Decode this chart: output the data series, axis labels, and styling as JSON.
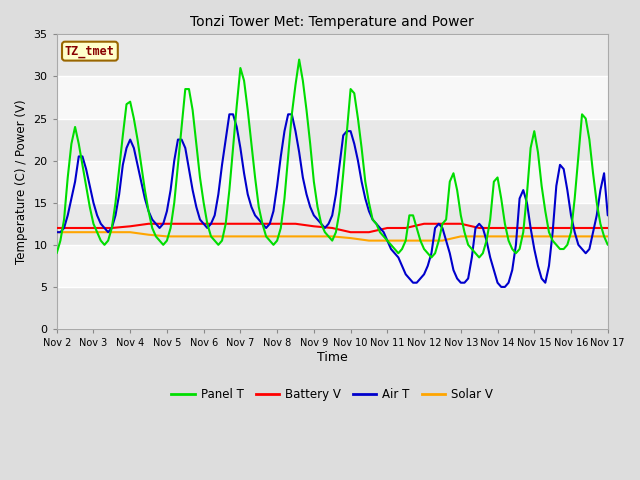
{
  "title": "Tonzi Tower Met: Temperature and Power",
  "xlabel": "Time",
  "ylabel": "Temperature (C) / Power (V)",
  "ylim": [
    0,
    35
  ],
  "yticks": [
    0,
    5,
    10,
    15,
    20,
    25,
    30,
    35
  ],
  "fig_bg": "#f0f0f0",
  "plot_bg": "#f0f0f0",
  "annotation_text": "TZ_tmet",
  "annotation_bg": "#ffffcc",
  "annotation_border": "#996600",
  "annotation_text_color": "#880000",
  "legend_entries": [
    "Panel T",
    "Battery V",
    "Air T",
    "Solar V"
  ],
  "legend_colors": [
    "#00ee00",
    "#ff0000",
    "#0000dd",
    "#ffa500"
  ],
  "x_tick_labels": [
    "Nov 2",
    "Nov 3",
    "Nov 4",
    "Nov 5",
    "Nov 6",
    "Nov 7",
    "Nov 8",
    "Nov 9",
    "Nov 10",
    "Nov 11",
    "Nov 12",
    "Nov 13",
    "Nov 14",
    "Nov 15",
    "Nov 16",
    "Nov 17"
  ],
  "panel_t_x": [
    1.0,
    1.1,
    1.2,
    1.3,
    1.4,
    1.5,
    1.6,
    1.7,
    1.8,
    1.9,
    2.0,
    2.1,
    2.2,
    2.3,
    2.4,
    2.5,
    2.6,
    2.7,
    2.8,
    2.9,
    3.0,
    3.1,
    3.2,
    3.3,
    3.4,
    3.5,
    3.6,
    3.7,
    3.8,
    3.9,
    4.0,
    4.1,
    4.2,
    4.3,
    4.4,
    4.5,
    4.6,
    4.7,
    4.8,
    4.9,
    5.0,
    5.1,
    5.2,
    5.3,
    5.4,
    5.5,
    5.6,
    5.7,
    5.8,
    5.9,
    6.0,
    6.1,
    6.2,
    6.3,
    6.4,
    6.5,
    6.6,
    6.7,
    6.8,
    6.9,
    7.0,
    7.1,
    7.2,
    7.3,
    7.4,
    7.5,
    7.6,
    7.7,
    7.8,
    7.9,
    8.0,
    8.1,
    8.2,
    8.3,
    8.4,
    8.5,
    8.6,
    8.7,
    8.8,
    8.9,
    9.0,
    9.1,
    9.2,
    9.3,
    9.4,
    9.5,
    9.6,
    9.7,
    9.8,
    9.9,
    10.0,
    10.1,
    10.2,
    10.3,
    10.4,
    10.5,
    10.6,
    10.7,
    10.8,
    10.9,
    11.0,
    11.1,
    11.2,
    11.3,
    11.4,
    11.5,
    11.6,
    11.7,
    11.8,
    11.9,
    12.0,
    12.1,
    12.2,
    12.3,
    12.4,
    12.5,
    12.6,
    12.7,
    12.8,
    12.9,
    13.0,
    13.1,
    13.2,
    13.3,
    13.4,
    13.5,
    13.6,
    13.7,
    13.8,
    13.9,
    14.0,
    14.1,
    14.2,
    14.3,
    14.4,
    14.5,
    14.6,
    14.7,
    14.8,
    14.9,
    15.0,
    15.1,
    15.2,
    15.3,
    15.4,
    15.5,
    15.6,
    15.7,
    15.8,
    15.9,
    16.0
  ],
  "panel_t_y": [
    9.0,
    10.5,
    13.0,
    18.0,
    22.0,
    24.0,
    22.0,
    19.5,
    17.0,
    14.5,
    12.5,
    11.5,
    10.5,
    10.0,
    10.5,
    12.0,
    15.0,
    19.0,
    23.0,
    26.7,
    27.0,
    25.0,
    22.5,
    19.5,
    16.5,
    14.0,
    12.0,
    11.0,
    10.5,
    10.0,
    10.5,
    12.0,
    15.0,
    19.5,
    24.0,
    28.5,
    28.5,
    26.0,
    22.0,
    18.0,
    15.0,
    12.5,
    11.0,
    10.5,
    10.0,
    10.5,
    12.5,
    16.5,
    21.5,
    26.5,
    31.0,
    29.5,
    26.0,
    22.0,
    18.0,
    14.5,
    12.5,
    11.0,
    10.5,
    10.0,
    10.5,
    12.0,
    15.5,
    20.5,
    25.5,
    29.0,
    32.0,
    29.5,
    26.0,
    22.0,
    17.5,
    14.5,
    12.5,
    11.5,
    11.0,
    10.5,
    11.5,
    14.0,
    18.5,
    23.5,
    28.5,
    28.0,
    25.0,
    21.5,
    17.5,
    15.0,
    13.0,
    12.5,
    11.5,
    11.0,
    10.5,
    10.0,
    9.5,
    9.0,
    9.5,
    10.5,
    13.5,
    13.5,
    12.0,
    10.5,
    9.5,
    9.0,
    8.5,
    9.0,
    10.5,
    12.5,
    13.0,
    17.5,
    18.5,
    16.5,
    13.5,
    11.5,
    10.0,
    9.5,
    9.0,
    8.5,
    9.0,
    10.5,
    13.0,
    17.5,
    18.0,
    15.5,
    12.5,
    10.5,
    9.5,
    9.0,
    9.5,
    11.5,
    16.0,
    21.5,
    23.5,
    21.0,
    17.0,
    14.0,
    11.5,
    10.5,
    10.0,
    9.5,
    9.5,
    10.0,
    11.5,
    15.5,
    20.5,
    25.5,
    25.0,
    22.5,
    18.5,
    15.0,
    12.5,
    11.0,
    10.0
  ],
  "air_t_x": [
    1.0,
    1.1,
    1.2,
    1.3,
    1.4,
    1.5,
    1.6,
    1.7,
    1.8,
    1.9,
    2.0,
    2.1,
    2.2,
    2.3,
    2.4,
    2.5,
    2.6,
    2.7,
    2.8,
    2.9,
    3.0,
    3.1,
    3.2,
    3.3,
    3.4,
    3.5,
    3.6,
    3.7,
    3.8,
    3.9,
    4.0,
    4.1,
    4.2,
    4.3,
    4.4,
    4.5,
    4.6,
    4.7,
    4.8,
    4.9,
    5.0,
    5.1,
    5.2,
    5.3,
    5.4,
    5.5,
    5.6,
    5.7,
    5.8,
    5.9,
    6.0,
    6.1,
    6.2,
    6.3,
    6.4,
    6.5,
    6.6,
    6.7,
    6.8,
    6.9,
    7.0,
    7.1,
    7.2,
    7.3,
    7.4,
    7.5,
    7.6,
    7.7,
    7.8,
    7.9,
    8.0,
    8.1,
    8.2,
    8.3,
    8.4,
    8.5,
    8.6,
    8.7,
    8.8,
    8.9,
    9.0,
    9.1,
    9.2,
    9.3,
    9.4,
    9.5,
    9.6,
    9.7,
    9.8,
    9.9,
    10.0,
    10.1,
    10.2,
    10.3,
    10.4,
    10.5,
    10.6,
    10.7,
    10.8,
    10.9,
    11.0,
    11.1,
    11.2,
    11.3,
    11.4,
    11.5,
    11.6,
    11.7,
    11.8,
    11.9,
    12.0,
    12.1,
    12.2,
    12.3,
    12.4,
    12.5,
    12.6,
    12.7,
    12.8,
    12.9,
    13.0,
    13.1,
    13.2,
    13.3,
    13.4,
    13.5,
    13.6,
    13.7,
    13.8,
    13.9,
    14.0,
    14.1,
    14.2,
    14.3,
    14.4,
    14.5,
    14.6,
    14.7,
    14.8,
    14.9,
    15.0,
    15.1,
    15.2,
    15.3,
    15.4,
    15.5,
    15.6,
    15.7,
    15.8,
    15.9,
    16.0
  ],
  "air_t_y": [
    11.5,
    11.5,
    12.0,
    13.5,
    15.5,
    17.5,
    20.5,
    20.5,
    19.0,
    17.0,
    15.0,
    13.5,
    12.5,
    12.0,
    11.5,
    12.0,
    13.5,
    16.0,
    19.5,
    21.5,
    22.5,
    21.5,
    19.5,
    17.5,
    15.5,
    14.0,
    13.0,
    12.5,
    12.0,
    12.5,
    14.0,
    16.5,
    20.0,
    22.5,
    22.5,
    21.5,
    19.0,
    16.5,
    14.5,
    13.0,
    12.5,
    12.0,
    12.5,
    13.5,
    16.0,
    19.5,
    22.5,
    25.5,
    25.5,
    24.0,
    21.5,
    18.5,
    16.0,
    14.5,
    13.5,
    13.0,
    12.5,
    12.0,
    12.5,
    14.0,
    17.0,
    20.5,
    23.5,
    25.5,
    25.5,
    23.5,
    21.0,
    18.0,
    16.0,
    14.5,
    13.5,
    13.0,
    12.5,
    12.0,
    12.5,
    13.5,
    16.0,
    19.5,
    23.0,
    23.5,
    23.5,
    22.0,
    20.0,
    17.5,
    15.5,
    14.0,
    13.0,
    12.5,
    12.0,
    11.5,
    10.5,
    9.5,
    9.0,
    8.5,
    7.5,
    6.5,
    6.0,
    5.5,
    5.5,
    6.0,
    6.5,
    7.5,
    9.0,
    12.0,
    12.5,
    12.0,
    10.5,
    9.0,
    7.0,
    6.0,
    5.5,
    5.5,
    6.0,
    8.5,
    12.0,
    12.5,
    12.0,
    10.5,
    8.5,
    7.0,
    5.5,
    5.0,
    5.0,
    5.5,
    7.0,
    10.0,
    15.5,
    16.5,
    15.0,
    12.0,
    9.5,
    7.5,
    6.0,
    5.5,
    7.5,
    11.5,
    17.0,
    19.5,
    19.0,
    16.5,
    13.5,
    11.5,
    10.0,
    9.5,
    9.0,
    9.5,
    11.5,
    13.5,
    16.5,
    18.5,
    13.5
  ],
  "battery_v_x": [
    1.0,
    1.5,
    2.0,
    2.5,
    3.0,
    3.5,
    4.0,
    4.5,
    5.0,
    5.5,
    6.0,
    6.5,
    7.0,
    7.5,
    8.0,
    8.5,
    9.0,
    9.5,
    10.0,
    10.5,
    11.0,
    11.5,
    12.0,
    12.5,
    13.0,
    13.5,
    14.0,
    14.5,
    15.0,
    15.5,
    16.0
  ],
  "battery_v_y": [
    12.0,
    12.0,
    12.0,
    12.0,
    12.2,
    12.5,
    12.5,
    12.5,
    12.5,
    12.5,
    12.5,
    12.5,
    12.5,
    12.5,
    12.2,
    12.0,
    11.5,
    11.5,
    12.0,
    12.0,
    12.5,
    12.5,
    12.5,
    12.0,
    12.0,
    12.0,
    12.0,
    12.0,
    12.0,
    12.0,
    12.0
  ],
  "solar_v_x": [
    1.0,
    1.5,
    2.0,
    2.5,
    3.0,
    3.5,
    4.0,
    4.5,
    5.0,
    5.5,
    6.0,
    6.5,
    7.0,
    7.5,
    8.0,
    8.5,
    9.0,
    9.5,
    10.0,
    10.5,
    11.0,
    11.5,
    12.0,
    12.5,
    13.0,
    13.5,
    14.0,
    14.5,
    15.0,
    15.5,
    16.0
  ],
  "solar_v_y": [
    11.5,
    11.5,
    11.5,
    11.5,
    11.5,
    11.2,
    11.0,
    11.0,
    11.0,
    11.0,
    11.0,
    11.0,
    11.0,
    11.0,
    11.0,
    11.0,
    10.8,
    10.5,
    10.5,
    10.5,
    10.5,
    10.5,
    11.0,
    11.0,
    11.0,
    11.0,
    11.0,
    11.0,
    11.0,
    11.0,
    11.0
  ]
}
